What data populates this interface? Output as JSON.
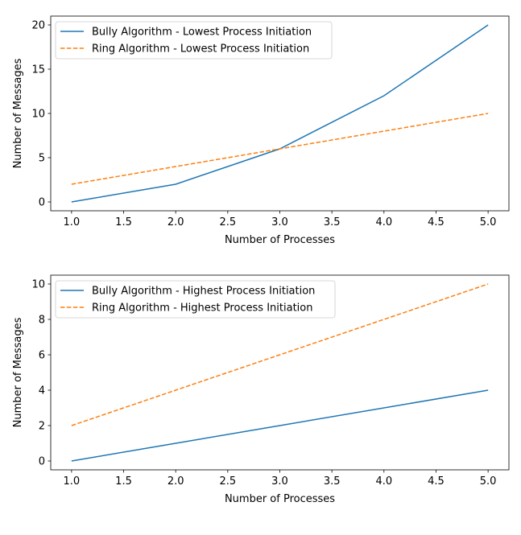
{
  "chart_data": [
    {
      "type": "line",
      "xlabel": "Number of Processes",
      "ylabel": "Number of Messages",
      "x": [
        1,
        2,
        3,
        4,
        5
      ],
      "xlim": [
        0.8,
        5.2
      ],
      "ylim": [
        -1,
        21
      ],
      "xticks": [
        "1.0",
        "1.5",
        "2.0",
        "2.5",
        "3.0",
        "3.5",
        "4.0",
        "4.5",
        "5.0"
      ],
      "yticks": [
        "0",
        "5",
        "10",
        "15",
        "20"
      ],
      "grid": false,
      "legend_position": "top-left",
      "series": [
        {
          "name": "Bully Algorithm - Lowest Process Initiation",
          "values": [
            0,
            2,
            6,
            12,
            20
          ],
          "color": "#1f77b4",
          "style": "solid"
        },
        {
          "name": "Ring Algorithm - Lowest Process Initiation",
          "values": [
            2,
            4,
            6,
            8,
            10
          ],
          "color": "#ff7f0e",
          "style": "dashed"
        }
      ]
    },
    {
      "type": "line",
      "xlabel": "Number of Processes",
      "ylabel": "Number of Messages",
      "x": [
        1,
        2,
        3,
        4,
        5
      ],
      "xlim": [
        0.8,
        5.2
      ],
      "ylim": [
        -0.5,
        10.5
      ],
      "xticks": [
        "1.0",
        "1.5",
        "2.0",
        "2.5",
        "3.0",
        "3.5",
        "4.0",
        "4.5",
        "5.0"
      ],
      "yticks": [
        "0",
        "2",
        "4",
        "6",
        "8",
        "10"
      ],
      "grid": false,
      "legend_position": "top-left",
      "series": [
        {
          "name": "Bully Algorithm - Highest Process Initiation",
          "values": [
            0,
            1,
            2,
            3,
            4
          ],
          "color": "#1f77b4",
          "style": "solid"
        },
        {
          "name": "Ring Algorithm - Highest Process Initiation",
          "values": [
            2,
            4,
            6,
            8,
            10
          ],
          "color": "#ff7f0e",
          "style": "dashed"
        }
      ]
    }
  ]
}
